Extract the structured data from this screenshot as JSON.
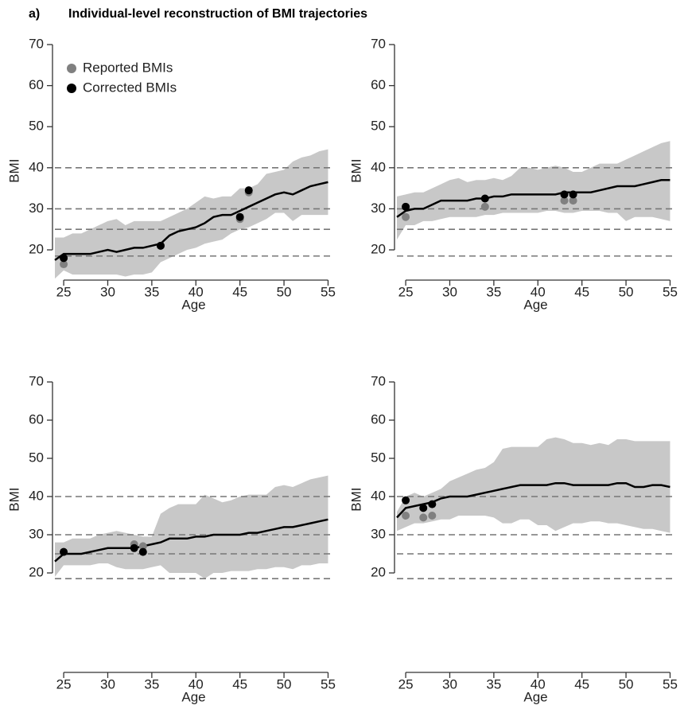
{
  "header": {
    "label": "a)",
    "title": "Individual-level reconstruction of BMI trajectories"
  },
  "chart_data": [
    {
      "type": "line",
      "x_label": "Age",
      "y_label": "BMI",
      "legend": "top-left",
      "x": [
        24,
        25,
        26,
        27,
        28,
        29,
        30,
        31,
        32,
        33,
        34,
        35,
        36,
        37,
        38,
        39,
        40,
        41,
        42,
        43,
        44,
        45,
        46,
        47,
        48,
        49,
        50,
        51,
        52,
        53,
        54,
        55
      ],
      "xlim": [
        24,
        55.5
      ],
      "ylim": [
        12.5,
        70
      ],
      "xticks": [
        25,
        30,
        35,
        40,
        45,
        50,
        55
      ],
      "yticks": [
        20,
        30,
        40,
        50,
        60,
        70
      ],
      "reference_lines": [
        18.5,
        25,
        30,
        40
      ],
      "band": {
        "color": "#c8c8c8",
        "high": [
          23,
          23,
          24,
          24,
          25,
          26,
          27,
          27.5,
          26,
          27,
          27,
          27,
          27,
          28,
          29,
          30,
          31.5,
          33,
          32.5,
          33,
          33,
          35,
          35,
          36,
          38.5,
          39,
          39.5,
          41.5,
          42.5,
          43,
          44,
          44.5
        ],
        "low": [
          13,
          15,
          14,
          14,
          14,
          14,
          14,
          14,
          13.5,
          14,
          14,
          14.5,
          17,
          18,
          19,
          20,
          20.5,
          21.5,
          22,
          22.5,
          24,
          25,
          25.5,
          26.5,
          27.5,
          29,
          29,
          27,
          28.5,
          28.5,
          28.5,
          28.5
        ]
      },
      "median": {
        "color": "#000000",
        "values": [
          17.5,
          19,
          19,
          19,
          19,
          19.5,
          20,
          19.5,
          20,
          20.5,
          20.5,
          21,
          21.5,
          23.5,
          24.5,
          25,
          25.5,
          26.5,
          28,
          28.5,
          28.5,
          29.5,
          30.5,
          31.5,
          32.5,
          33.5,
          34,
          33.5,
          34.5,
          35.5,
          36,
          36.5
        ]
      },
      "points": [
        {
          "name": "Reported BMIs",
          "color": "#808080",
          "x": [
            25,
            36,
            45,
            46
          ],
          "values": [
            16.5,
            21,
            27.5,
            34
          ]
        },
        {
          "name": "Corrected BMIs",
          "color": "#000000",
          "x": [
            25,
            36,
            45,
            46
          ],
          "values": [
            18,
            21,
            28,
            34.5
          ]
        }
      ]
    },
    {
      "type": "line",
      "x_label": "Age",
      "y_label": "BMI",
      "x": [
        24,
        25,
        26,
        27,
        28,
        29,
        30,
        31,
        32,
        33,
        34,
        35,
        36,
        37,
        38,
        39,
        40,
        41,
        42,
        43,
        44,
        45,
        46,
        47,
        48,
        49,
        50,
        51,
        52,
        53,
        54,
        55
      ],
      "xlim": [
        24,
        55.5
      ],
      "ylim": [
        12.5,
        70
      ],
      "xticks": [
        25,
        30,
        35,
        40,
        45,
        50,
        55
      ],
      "yticks": [
        20,
        30,
        40,
        50,
        60,
        70
      ],
      "reference_lines": [
        18.5,
        25,
        30,
        40
      ],
      "band": {
        "color": "#c8c8c8",
        "high": [
          33,
          33.5,
          34,
          34,
          35,
          36,
          37,
          37.5,
          36.5,
          37,
          37,
          37.5,
          37,
          38,
          40,
          40,
          39.5,
          40,
          40.5,
          40,
          39,
          39,
          40,
          41,
          41,
          41,
          42,
          43,
          44,
          45,
          46,
          46.5
        ],
        "low": [
          22.5,
          26,
          26,
          27,
          27,
          27.5,
          28,
          28,
          28,
          28,
          28.5,
          28.5,
          29,
          29,
          29,
          29,
          29,
          29.5,
          29.5,
          29,
          29,
          29.5,
          29.5,
          29.5,
          29,
          29,
          27,
          28,
          28,
          28,
          27.5,
          27
        ]
      },
      "median": {
        "color": "#000000",
        "values": [
          28,
          29.5,
          30,
          30,
          31,
          32,
          32,
          32,
          32,
          32.5,
          32.5,
          33,
          33,
          33.5,
          33.5,
          33.5,
          33.5,
          33.5,
          33.5,
          34,
          34,
          34,
          34,
          34.5,
          35,
          35.5,
          35.5,
          35.5,
          36,
          36.5,
          37,
          37
        ]
      },
      "points": [
        {
          "color": "#808080",
          "x": [
            25,
            34,
            43,
            44
          ],
          "values": [
            28,
            30.5,
            32,
            32
          ]
        },
        {
          "color": "#000000",
          "x": [
            25,
            34,
            43,
            44
          ],
          "values": [
            30.5,
            32.5,
            33.5,
            33.5
          ]
        }
      ]
    },
    {
      "type": "line",
      "x_label": "Age",
      "y_label": "BMI",
      "x": [
        24,
        25,
        26,
        27,
        28,
        29,
        30,
        31,
        32,
        33,
        34,
        35,
        36,
        37,
        38,
        39,
        40,
        41,
        42,
        43,
        44,
        45,
        46,
        47,
        48,
        49,
        50,
        51,
        52,
        53,
        54,
        55
      ],
      "xlim": [
        24,
        55.5
      ],
      "ylim": [
        12.5,
        70
      ],
      "xticks": [
        25,
        30,
        35,
        40,
        45,
        50,
        55
      ],
      "yticks": [
        20,
        30,
        40,
        50,
        60,
        70
      ],
      "reference_lines": [
        18.5,
        25,
        30,
        40
      ],
      "band": {
        "color": "#c8c8c8",
        "high": [
          28,
          28,
          29,
          29,
          29,
          30,
          30.5,
          31,
          30.5,
          30,
          29.5,
          29.5,
          35.5,
          37,
          38,
          38,
          38,
          40.5,
          39.5,
          38.5,
          39,
          40,
          40.5,
          40.5,
          40.5,
          42.5,
          43,
          42.5,
          43.5,
          44.5,
          45,
          45.5
        ],
        "low": [
          19,
          22,
          22,
          22,
          22,
          22.5,
          22.5,
          21.5,
          21,
          21,
          21,
          21.5,
          22,
          20,
          20,
          20,
          20,
          18.5,
          20,
          20,
          20.5,
          20.5,
          20.5,
          21,
          21,
          21.5,
          21.5,
          21,
          22,
          22,
          22.5,
          22.5
        ]
      },
      "median": {
        "color": "#000000",
        "values": [
          23,
          25,
          25,
          25,
          25.5,
          26,
          26.5,
          26.5,
          26.5,
          26.5,
          27,
          27.5,
          28,
          29,
          29,
          29,
          29.5,
          29.5,
          30,
          30,
          30,
          30,
          30.5,
          30.5,
          31,
          31.5,
          32,
          32,
          32.5,
          33,
          33.5,
          34
        ]
      },
      "points": [
        {
          "color": "#808080",
          "x": [
            25,
            33,
            34
          ],
          "values": [
            25.5,
            27.5,
            27
          ]
        },
        {
          "color": "#000000",
          "x": [
            25,
            33,
            34
          ],
          "values": [
            25.5,
            26.5,
            25.5
          ]
        }
      ]
    },
    {
      "type": "line",
      "x_label": "Age",
      "y_label": "BMI",
      "x": [
        24,
        25,
        26,
        27,
        28,
        29,
        30,
        31,
        32,
        33,
        34,
        35,
        36,
        37,
        38,
        39,
        40,
        41,
        42,
        43,
        44,
        45,
        46,
        47,
        48,
        49,
        50,
        51,
        52,
        53,
        54,
        55
      ],
      "xlim": [
        24,
        55.5
      ],
      "ylim": [
        12.5,
        70
      ],
      "xticks": [
        25,
        30,
        35,
        40,
        45,
        50,
        55
      ],
      "yticks": [
        20,
        30,
        40,
        50,
        60,
        70
      ],
      "reference_lines": [
        18.5,
        25,
        30,
        40
      ],
      "band": {
        "color": "#c8c8c8",
        "high": [
          36,
          40,
          41,
          40,
          41,
          42,
          44,
          45,
          46,
          47,
          47.5,
          49,
          52.5,
          53,
          53,
          53,
          53,
          55,
          55.5,
          55,
          54,
          54,
          53.5,
          54,
          53.5,
          55,
          55,
          54.5,
          54.5,
          54.5,
          54.5,
          54.5
        ],
        "low": [
          31,
          32,
          33,
          33,
          33.5,
          34,
          34,
          35,
          35,
          35,
          35,
          34.5,
          33,
          33,
          34,
          34,
          32.5,
          32.5,
          31,
          32,
          33,
          33,
          33.5,
          33.5,
          33,
          33,
          32.5,
          32,
          31.5,
          31.5,
          31,
          30.5
        ]
      },
      "median": {
        "color": "#000000",
        "values": [
          34.5,
          37,
          37.5,
          38,
          38.5,
          39.5,
          40,
          40,
          40,
          40.5,
          41,
          41.5,
          42,
          42.5,
          43,
          43,
          43,
          43,
          43.5,
          43.5,
          43,
          43,
          43,
          43,
          43,
          43.5,
          43.5,
          42.5,
          42.5,
          43,
          43,
          42.5
        ]
      },
      "points": [
        {
          "color": "#808080",
          "x": [
            25,
            27,
            28
          ],
          "values": [
            35,
            34.5,
            35
          ]
        },
        {
          "color": "#000000",
          "x": [
            25,
            27,
            28
          ],
          "values": [
            39,
            37,
            38
          ]
        }
      ]
    }
  ]
}
